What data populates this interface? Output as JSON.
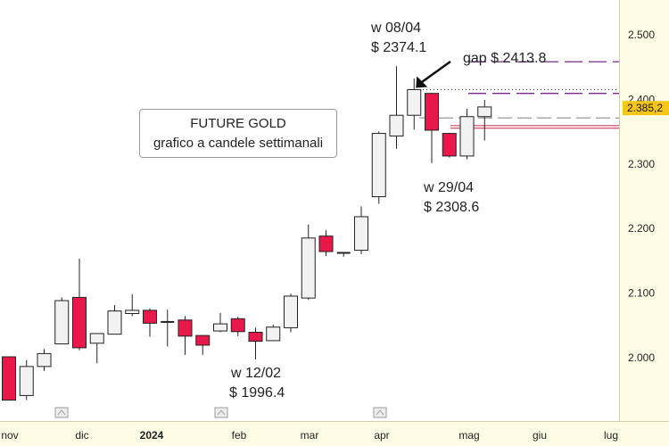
{
  "colors": {
    "bull_fill": "#f2f2f2",
    "bear_fill": "#e8194a",
    "candle_border": "#222222",
    "axis_panel": "#fdfde6",
    "price_marker": "#f5c518",
    "purple_dash": "#7a2a8a",
    "red_line": "#cc2244",
    "gray_dash": "#aaaaaa"
  },
  "chart_data": {
    "type": "candlestick",
    "title": "FUTURE GOLD",
    "subtitle": "grafico a candele settimanali",
    "ylim": [
      1930,
      2560
    ],
    "y_ticks": [
      "2.000",
      "2.100",
      "2.200",
      "2.300",
      "2.400",
      "2.500"
    ],
    "y_tick_values": [
      2000,
      2100,
      2200,
      2300,
      2400,
      2500
    ],
    "x_labels": [
      "nov",
      "dic",
      "2024",
      "feb",
      "mar",
      "apr",
      "mag",
      "giu",
      "lug"
    ],
    "current_price_label": "2.385,2",
    "current_price": 2385.2,
    "candles": [
      {
        "o": 2000,
        "h": 2000,
        "l": 1933,
        "c": 1933
      },
      {
        "o": 1940,
        "h": 1995,
        "l": 1933,
        "c": 1985
      },
      {
        "o": 1985,
        "h": 2012,
        "l": 1978,
        "c": 2005
      },
      {
        "o": 2020,
        "h": 2092,
        "l": 2020,
        "c": 2087
      },
      {
        "o": 2092,
        "h": 2152,
        "l": 2010,
        "c": 2014
      },
      {
        "o": 2021,
        "h": 2036,
        "l": 1990,
        "c": 2036
      },
      {
        "o": 2035,
        "h": 2080,
        "l": 2035,
        "c": 2071
      },
      {
        "o": 2067,
        "h": 2097,
        "l": 2063,
        "c": 2072
      },
      {
        "o": 2072,
        "h": 2075,
        "l": 2031,
        "c": 2052
      },
      {
        "o": 2054,
        "h": 2073,
        "l": 2016,
        "c": 2054
      },
      {
        "o": 2057,
        "h": 2063,
        "l": 2003,
        "c": 2032
      },
      {
        "o": 2033,
        "h": 2033,
        "l": 2003,
        "c": 2018
      },
      {
        "o": 2040,
        "h": 2068,
        "l": 2038,
        "c": 2051
      },
      {
        "o": 2059,
        "h": 2062,
        "l": 2032,
        "c": 2039
      },
      {
        "o": 2038,
        "h": 2045,
        "l": 1996,
        "c": 2024
      },
      {
        "o": 2025,
        "h": 2050,
        "l": 2025,
        "c": 2046
      },
      {
        "o": 2045,
        "h": 2098,
        "l": 2038,
        "c": 2094
      },
      {
        "o": 2091,
        "h": 2205,
        "l": 2088,
        "c": 2184
      },
      {
        "o": 2187,
        "h": 2196,
        "l": 2156,
        "c": 2163
      },
      {
        "o": 2161,
        "h": 2161,
        "l": 2155,
        "c": 2161
      },
      {
        "o": 2165,
        "h": 2233,
        "l": 2159,
        "c": 2217
      },
      {
        "o": 2248,
        "h": 2349,
        "l": 2237,
        "c": 2346
      },
      {
        "o": 2342,
        "h": 2450,
        "l": 2322,
        "c": 2374.1
      },
      {
        "o": 2374.1,
        "h": 2431,
        "l": 2352,
        "c": 2413.8
      },
      {
        "o": 2408,
        "h": 2409,
        "l": 2300,
        "c": 2351
      },
      {
        "o": 2346,
        "h": 2347,
        "l": 2308.6,
        "c": 2311
      },
      {
        "o": 2311,
        "h": 2384,
        "l": 2306,
        "c": 2372
      },
      {
        "o": 2372,
        "h": 2398,
        "l": 2335,
        "c": 2387
      }
    ],
    "lines": [
      {
        "style": "purple-dash",
        "y": 2457
      },
      {
        "style": "purple-dash",
        "y": 2408
      },
      {
        "style": "dotted",
        "y": 2413.8
      },
      {
        "style": "gray-dash",
        "y": 2370
      },
      {
        "style": "red",
        "y": 2358
      },
      {
        "style": "red",
        "y": 2354
      }
    ]
  },
  "title_box": {
    "line1": "FUTURE GOLD",
    "line2": "grafico a candele settimanali"
  },
  "annotations": {
    "w0804_week": "w 08/04",
    "w0804_price": "$ 2374.1",
    "gap": "gap $ 2413.8",
    "w2904_week": "w 29/04",
    "w2904_price": "$ 2308.6",
    "w1202_week": "w 12/02",
    "w1202_price": "$ 1996.4"
  }
}
